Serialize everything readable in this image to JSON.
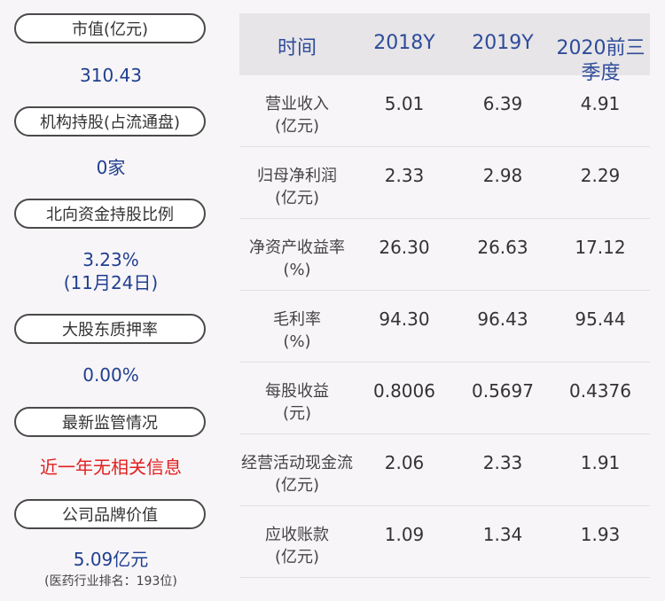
{
  "left_panel": [
    {
      "label": "市值(亿元)",
      "value": "310.43"
    },
    {
      "label": "机构持股(占流通盘)",
      "value": "0家"
    },
    {
      "label": "北向资金持股比例",
      "value": "3.23%",
      "value2": "(11月24日)"
    },
    {
      "label": "大股东质押率",
      "value": "0.00%"
    },
    {
      "label": "最新监管情况",
      "value": "近一年无相关信息"
    },
    {
      "label": "公司品牌价值",
      "value": "5.09亿元",
      "note": "(医药行业排名：193位)"
    }
  ],
  "table": {
    "header": {
      "col0": "时间",
      "col1": "2018Y",
      "col2": "2019Y",
      "col3a": "2020前三",
      "col3b": "季度"
    },
    "rows": [
      {
        "label1": "营业收入",
        "label2": "(亿元)",
        "v1": "5.01",
        "v2": "6.39",
        "v3": "4.91"
      },
      {
        "label1": "归母净利润",
        "label2": "(亿元)",
        "v1": "2.33",
        "v2": "2.98",
        "v3": "2.29"
      },
      {
        "label1": "净资产收益率",
        "label2": "(%)",
        "v1": "26.30",
        "v2": "26.63",
        "v3": "17.12"
      },
      {
        "label1": "毛利率",
        "label2": "(%)",
        "v1": "94.30",
        "v2": "96.43",
        "v3": "95.44"
      },
      {
        "label1": "每股收益",
        "label2": "(元)",
        "v1": "0.8006",
        "v2": "0.5697",
        "v3": "0.4376"
      },
      {
        "label1": "经营活动现金流",
        "label2": "(亿元)",
        "v1": "2.06",
        "v2": "2.33",
        "v3": "1.91"
      },
      {
        "label1": "应收账款",
        "label2": "(亿元)",
        "v1": "1.09",
        "v2": "1.34",
        "v3": "1.93"
      }
    ]
  }
}
